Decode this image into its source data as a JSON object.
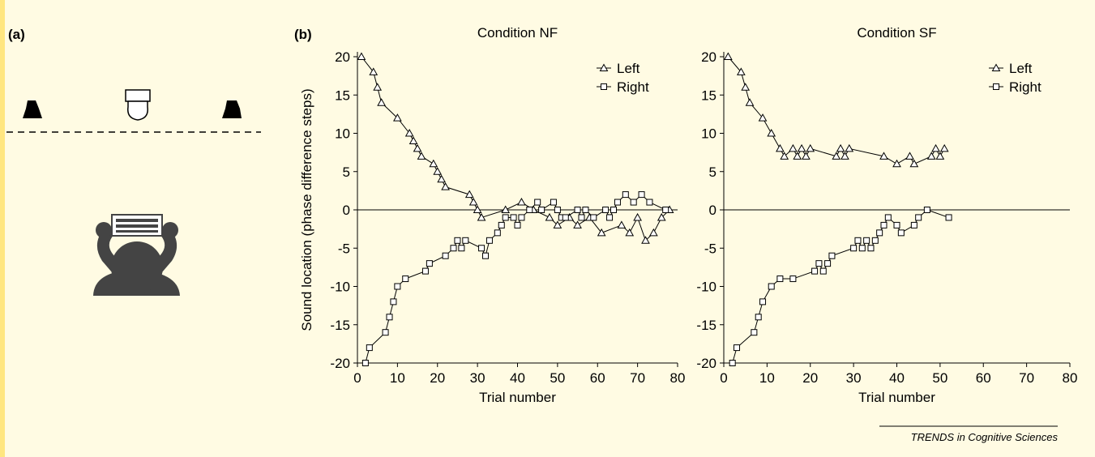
{
  "panel_labels": [
    "(a)",
    "(b)"
  ],
  "footer": "TRENDS in Cognitive Sciences",
  "chart_data": [
    {
      "type": "line",
      "title": "Condition NF",
      "xlabel": "Trial number",
      "ylabel": "Sound location (phase difference steps)",
      "xlim": [
        0,
        80
      ],
      "xticks": [
        0,
        10,
        20,
        30,
        40,
        50,
        60,
        70,
        80
      ],
      "ylim": [
        -20,
        20
      ],
      "yticks": [
        -20,
        -15,
        -10,
        -5,
        0,
        5,
        10,
        15,
        20
      ],
      "reference_line": 0,
      "legend": "upper right",
      "series": [
        {
          "name": "Left",
          "color": "#000000",
          "marker": "triangle",
          "x": [
            1,
            4,
            5,
            6,
            10,
            13,
            14,
            15,
            16,
            19,
            20,
            21,
            22,
            28,
            29,
            30,
            31,
            37,
            41,
            44,
            48,
            50,
            53,
            55,
            58,
            61,
            66,
            68,
            70,
            72,
            74,
            76,
            78
          ],
          "values": [
            20,
            18,
            16,
            14,
            12,
            10,
            9,
            8,
            7,
            6,
            5,
            4,
            3,
            2,
            1,
            0,
            -1,
            0,
            1,
            0,
            -1,
            -2,
            -1,
            -2,
            -1,
            -3,
            -2,
            -3,
            -1,
            -4,
            -3,
            -1,
            0
          ]
        },
        {
          "name": "Right",
          "color": "#000000",
          "marker": "square",
          "x": [
            2,
            3,
            7,
            8,
            9,
            10,
            12,
            17,
            18,
            22,
            24,
            25,
            26,
            27,
            31,
            32,
            33,
            35,
            36,
            37,
            39,
            40,
            41,
            43,
            45,
            46,
            49,
            50,
            51,
            52,
            55,
            56,
            57,
            59,
            62,
            63,
            64,
            65,
            67,
            69,
            71,
            73,
            77
          ],
          "values": [
            -20,
            -18,
            -16,
            -14,
            -12,
            -10,
            -9,
            -8,
            -7,
            -6,
            -5,
            -4,
            -5,
            -4,
            -5,
            -6,
            -4,
            -3,
            -2,
            -1,
            -1,
            -2,
            -1,
            0,
            1,
            0,
            1,
            0,
            -1,
            -1,
            0,
            -1,
            0,
            -1,
            0,
            -1,
            0,
            1,
            2,
            1,
            2,
            1,
            0
          ]
        }
      ]
    },
    {
      "type": "line",
      "title": "Condition SF",
      "xlabel": "Trial number",
      "xlim": [
        0,
        80
      ],
      "xticks": [
        0,
        10,
        20,
        30,
        40,
        50,
        60,
        70,
        80
      ],
      "ylim": [
        -20,
        20
      ],
      "yticks": [
        -20,
        -15,
        -10,
        -5,
        0,
        5,
        10,
        15,
        20
      ],
      "reference_line": 0,
      "legend": "upper right",
      "series": [
        {
          "name": "Left",
          "color": "#000000",
          "marker": "triangle",
          "x": [
            1,
            4,
            5,
            6,
            9,
            11,
            13,
            14,
            16,
            17,
            18,
            19,
            20,
            26,
            27,
            28,
            29,
            37,
            40,
            43,
            44,
            48,
            49,
            50,
            51
          ],
          "values": [
            20,
            18,
            16,
            14,
            12,
            10,
            8,
            7,
            8,
            7,
            8,
            7,
            8,
            7,
            8,
            7,
            8,
            7,
            6,
            7,
            6,
            7,
            8,
            7,
            8
          ]
        },
        {
          "name": "Right",
          "color": "#000000",
          "marker": "square",
          "x": [
            2,
            3,
            7,
            8,
            9,
            11,
            13,
            16,
            21,
            22,
            23,
            24,
            25,
            30,
            31,
            32,
            33,
            34,
            35,
            36,
            37,
            38,
            40,
            41,
            44,
            45,
            47,
            52
          ],
          "values": [
            -20,
            -18,
            -16,
            -14,
            -12,
            -10,
            -9,
            -9,
            -8,
            -7,
            -8,
            -7,
            -6,
            -5,
            -4,
            -5,
            -4,
            -5,
            -4,
            -3,
            -2,
            -1,
            -2,
            -3,
            -2,
            -1,
            0,
            -1
          ]
        }
      ]
    }
  ]
}
